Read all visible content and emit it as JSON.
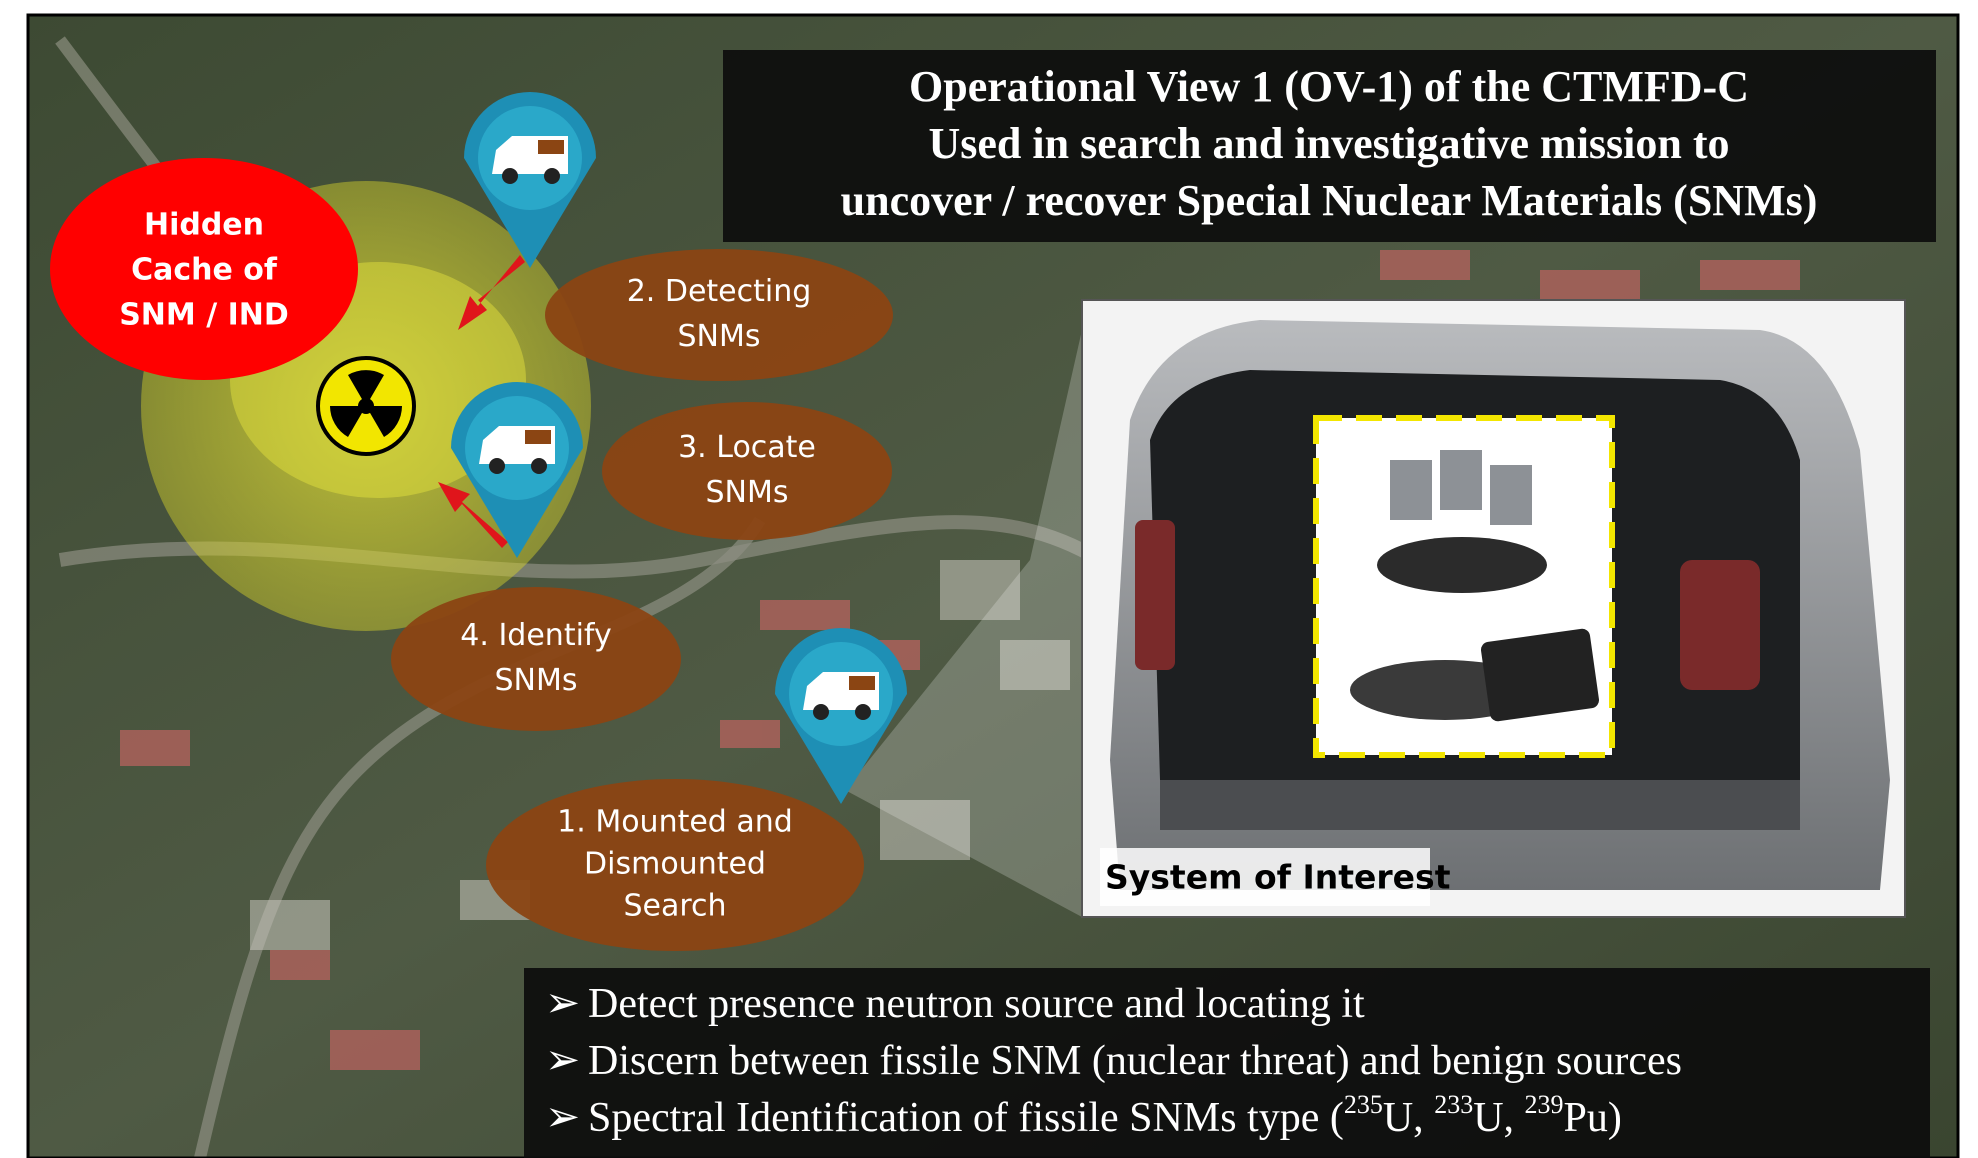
{
  "title": {
    "lines": [
      "Operational View 1 (OV-1) of the CTMFD-C",
      "Used in search and investigative mission to",
      "uncover / recover Special Nuclear Materials (SNMs)"
    ]
  },
  "target": {
    "lines": [
      "Hidden",
      "Cache of",
      "SNM / IND"
    ]
  },
  "steps": [
    {
      "lines": [
        "2. Detecting",
        "SNMs"
      ]
    },
    {
      "lines": [
        "3. Locate",
        "SNMs"
      ]
    },
    {
      "lines": [
        "4. Identify",
        "SNMs"
      ]
    },
    {
      "lines": [
        "1. Mounted and",
        "Dismounted",
        "Search"
      ]
    }
  ],
  "system_label": "System of Interest",
  "bullets": [
    {
      "parts": [
        {
          "text": "Detect presence neutron source and locating it"
        }
      ]
    },
    {
      "parts": [
        {
          "text": "Discern between fissile SNM (nuclear threat) and benign sources"
        }
      ]
    },
    {
      "parts": [
        {
          "text": "Spectral Identification of fissile SNMs type ("
        },
        {
          "sup": "235"
        },
        {
          "text": "U, "
        },
        {
          "sup": "233"
        },
        {
          "text": "U, "
        },
        {
          "sup": "239"
        },
        {
          "text": "Pu)"
        }
      ]
    }
  ]
}
